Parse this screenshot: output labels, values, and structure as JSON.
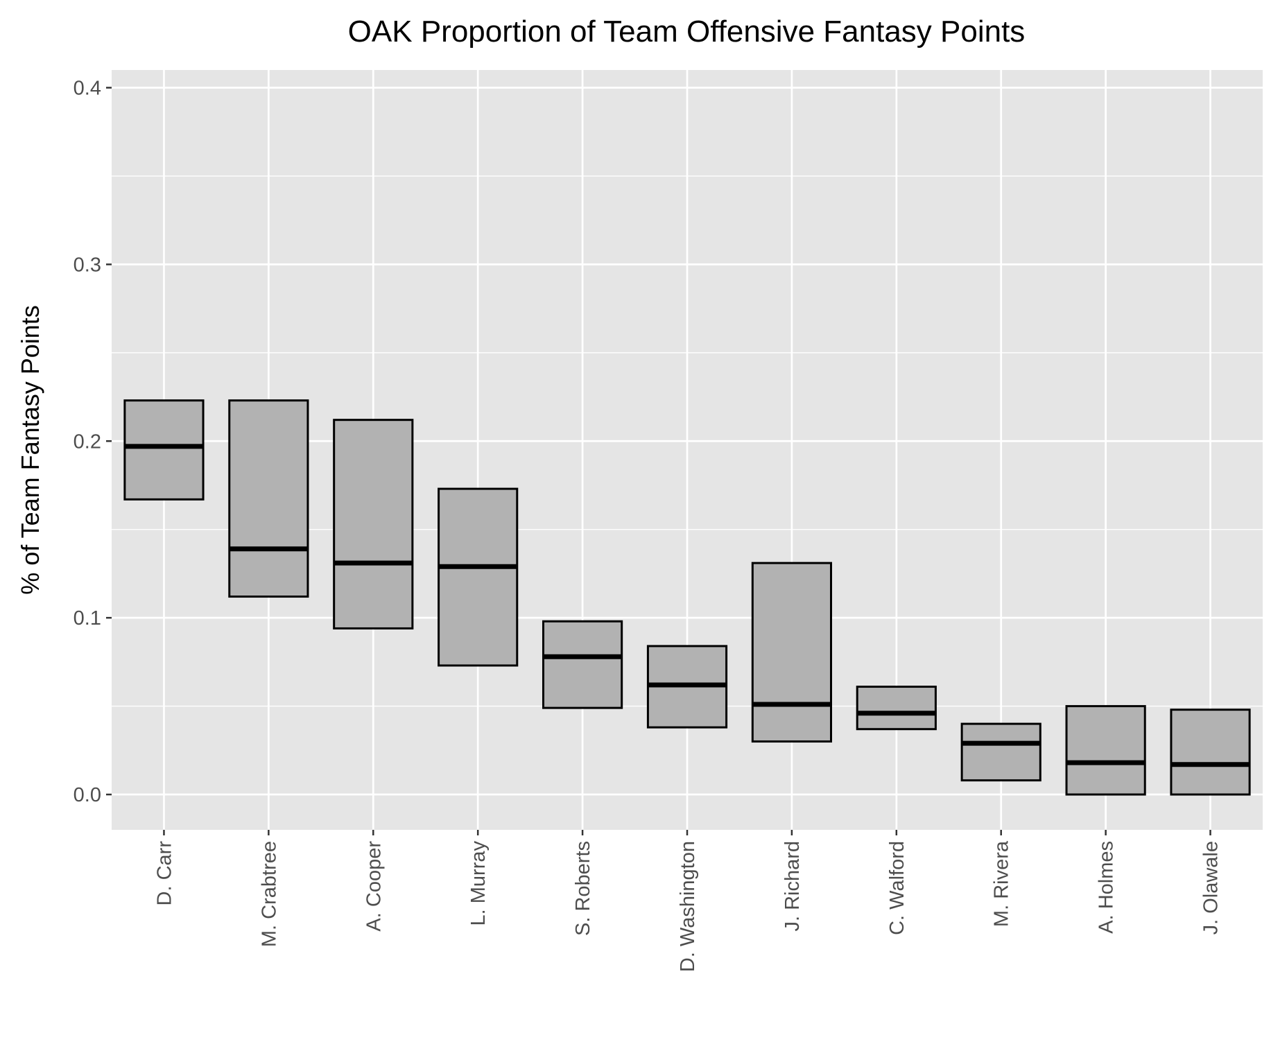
{
  "chart_data": {
    "type": "boxplot",
    "title": "OAK Proportion of Team Offensive Fantasy Points",
    "xlabel": "",
    "ylabel": "% of Team Fantasy Points",
    "ylim": [
      -0.02,
      0.41
    ],
    "yticks": [
      0.0,
      0.1,
      0.2,
      0.3,
      0.4
    ],
    "ytick_labels": [
      "0.0",
      "0.1",
      "0.2",
      "0.3",
      "0.4"
    ],
    "grid": true,
    "legend": "none",
    "categories": [
      "D. Carr",
      "M. Crabtree",
      "A. Cooper",
      "L. Murray",
      "S. Roberts",
      "D. Washington",
      "J. Richard",
      "C. Walford",
      "M. Rivera",
      "A. Holmes",
      "J. Olawale"
    ],
    "boxes": [
      {
        "lower": 0.167,
        "median": 0.197,
        "upper": 0.223
      },
      {
        "lower": 0.112,
        "median": 0.139,
        "upper": 0.223
      },
      {
        "lower": 0.094,
        "median": 0.131,
        "upper": 0.212
      },
      {
        "lower": 0.073,
        "median": 0.129,
        "upper": 0.173
      },
      {
        "lower": 0.049,
        "median": 0.078,
        "upper": 0.098
      },
      {
        "lower": 0.038,
        "median": 0.062,
        "upper": 0.084
      },
      {
        "lower": 0.03,
        "median": 0.051,
        "upper": 0.131
      },
      {
        "lower": 0.037,
        "median": 0.046,
        "upper": 0.061
      },
      {
        "lower": 0.008,
        "median": 0.029,
        "upper": 0.04
      },
      {
        "lower": 0.0,
        "median": 0.018,
        "upper": 0.05
      },
      {
        "lower": 0.0,
        "median": 0.017,
        "upper": 0.048
      }
    ],
    "colors": {
      "panel": "#e5e5e5",
      "grid": "#ffffff",
      "box_fill": "#b2b2b2",
      "box_stroke": "#000000",
      "tick_text": "#4d4d4d",
      "axis_tick": "#333333"
    }
  }
}
